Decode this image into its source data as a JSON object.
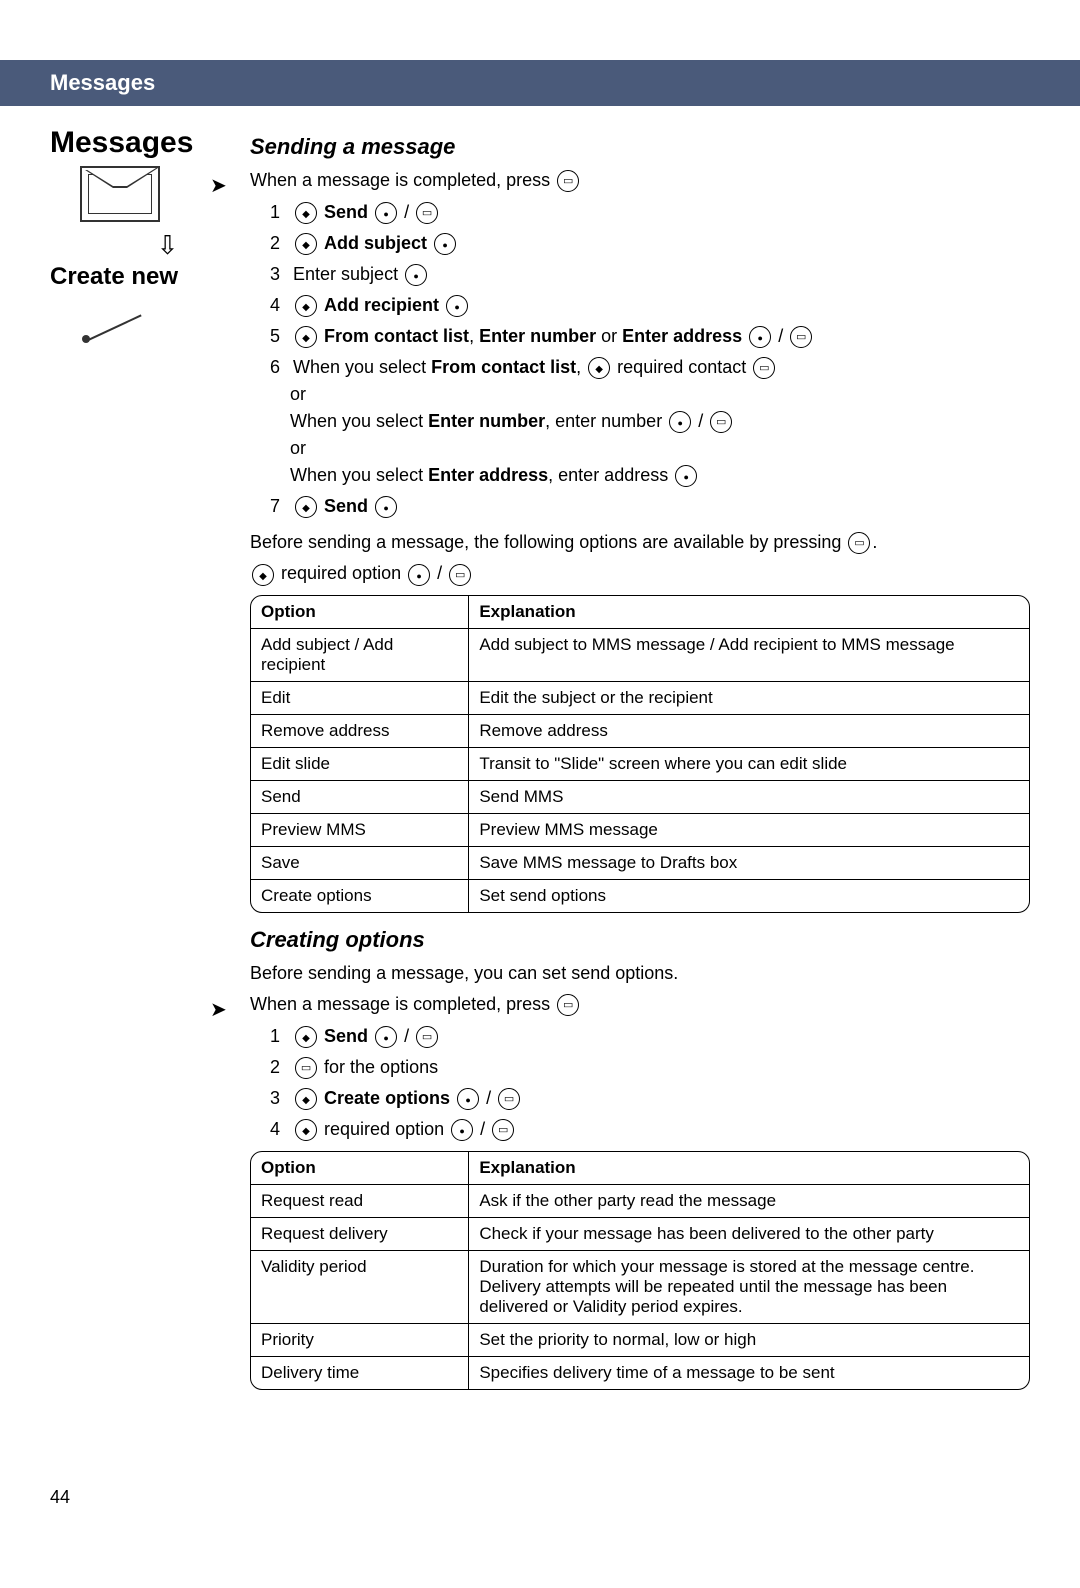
{
  "header": {
    "title": "Messages"
  },
  "leftcol": {
    "title": "Messages",
    "subtitle": "Create new"
  },
  "sending": {
    "title": "Sending a message",
    "intro": "When a message is completed, press",
    "steps": {
      "s1": "Send",
      "s2": "Add subject",
      "s3": "Enter subject",
      "s4": "Add recipient",
      "s5a": "From contact list",
      "s5b": "Enter number",
      "s5c": "Enter address",
      "s6a": "When you select",
      "s6a2": "From contact list",
      "s6a3": "required contact",
      "s6or": "or",
      "s6b": "When you select",
      "s6b2": "Enter number",
      "s6b3": ", enter number",
      "s6c": "When you select",
      "s6c2": "Enter address",
      "s6c3": ", enter address",
      "s7": "Send"
    },
    "beforeText": "Before sending a message, the following options are available by pressing",
    "reqOption": "required option",
    "table": {
      "h1": "Option",
      "h2": "Explanation",
      "rows": [
        [
          "Add subject / Add recipient",
          "Add subject to MMS message / Add recipient to MMS message"
        ],
        [
          "Edit",
          "Edit the subject or the recipient"
        ],
        [
          "Remove address",
          "Remove address"
        ],
        [
          "Edit slide",
          "Transit to \"Slide\" screen where you can edit slide"
        ],
        [
          "Send",
          "Send MMS"
        ],
        [
          "Preview MMS",
          "Preview MMS message"
        ],
        [
          "Save",
          "Save MMS message to Drafts box"
        ],
        [
          "Create options",
          "Set send options"
        ]
      ]
    }
  },
  "creating": {
    "title": "Creating options",
    "intro": "Before sending a message, you can set send options.",
    "intro2": "When a message is completed, press",
    "steps": {
      "s1": "Send",
      "s2": "for the options",
      "s3": "Create options",
      "s4": "required option"
    },
    "table": {
      "h1": "Option",
      "h2": "Explanation",
      "rows": [
        [
          "Request read",
          "Ask if the other party read the message"
        ],
        [
          "Request delivery",
          "Check if your message has been delivered to the other party"
        ],
        [
          "Validity period",
          "Duration for which your message is stored at the message centre.\nDelivery attempts will be repeated until the message has been delivered or Validity period expires."
        ],
        [
          "Priority",
          "Set the priority to normal, low or high"
        ],
        [
          "Delivery time",
          "Specifies delivery time of a message to be sent"
        ]
      ]
    }
  },
  "pageNum": "44",
  "colors": {
    "headerBg": "#4a5a7a"
  }
}
